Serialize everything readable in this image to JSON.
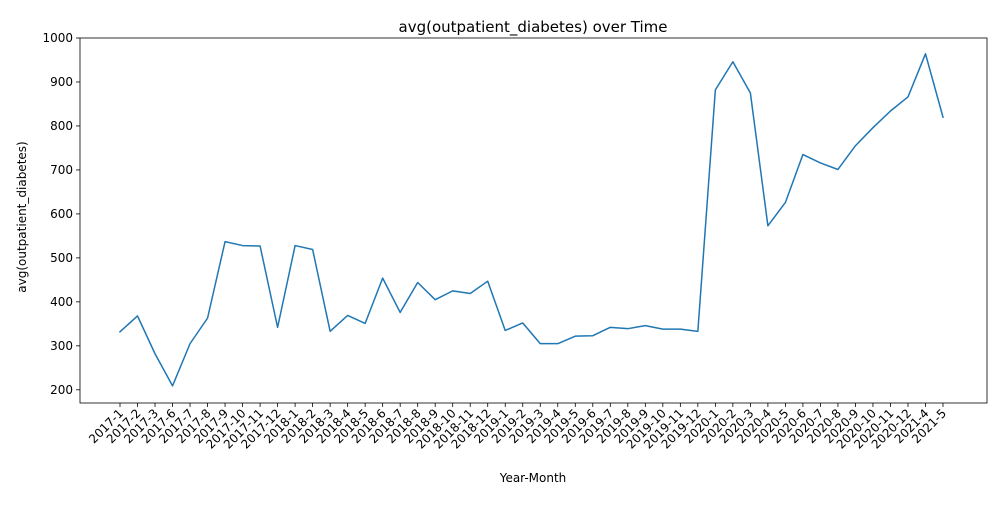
{
  "chart_data": {
    "type": "line",
    "title": "avg(outpatient_diabetes) over Time",
    "xlabel": "Year-Month",
    "ylabel": "avg(outpatient_diabetes)",
    "ylim": [
      170,
      1000
    ],
    "yticks": [
      200,
      300,
      400,
      500,
      600,
      700,
      800,
      900,
      1000
    ],
    "ytick_labels": [
      "200",
      "300",
      "400",
      "500",
      "600",
      "700",
      "800",
      "900",
      "1000"
    ],
    "grid": false,
    "line_color": "#1f77b4",
    "categories": [
      "2017-1",
      "2017-2",
      "2017-3",
      "2017-6",
      "2017-7",
      "2017-8",
      "2017-9",
      "2017-10",
      "2017-11",
      "2017-12",
      "2018-1",
      "2018-2",
      "2018-3",
      "2018-4",
      "2018-5",
      "2018-6",
      "2018-7",
      "2018-8",
      "2018-9",
      "2018-10",
      "2018-11",
      "2018-12",
      "2019-1",
      "2019-2",
      "2019-3",
      "2019-4",
      "2019-5",
      "2019-6",
      "2019-7",
      "2019-8",
      "2019-9",
      "2019-10",
      "2019-11",
      "2019-12",
      "2020-1",
      "2020-2",
      "2020-3",
      "2020-4",
      "2020-5",
      "2020-6",
      "2020-7",
      "2020-8",
      "2020-9",
      "2020-10",
      "2020-11",
      "2020-12",
      "2021-4",
      "2021-5"
    ],
    "values": [
      332,
      368,
      282,
      209,
      305,
      363,
      537,
      528,
      527,
      342,
      528,
      519,
      333,
      369,
      351,
      454,
      376,
      444,
      405,
      425,
      419,
      447,
      335,
      352,
      305,
      305,
      322,
      323,
      342,
      339,
      346,
      338,
      338,
      333,
      882,
      946,
      875,
      573,
      626,
      735,
      716,
      701,
      755,
      796,
      834,
      866,
      964,
      820
    ]
  }
}
